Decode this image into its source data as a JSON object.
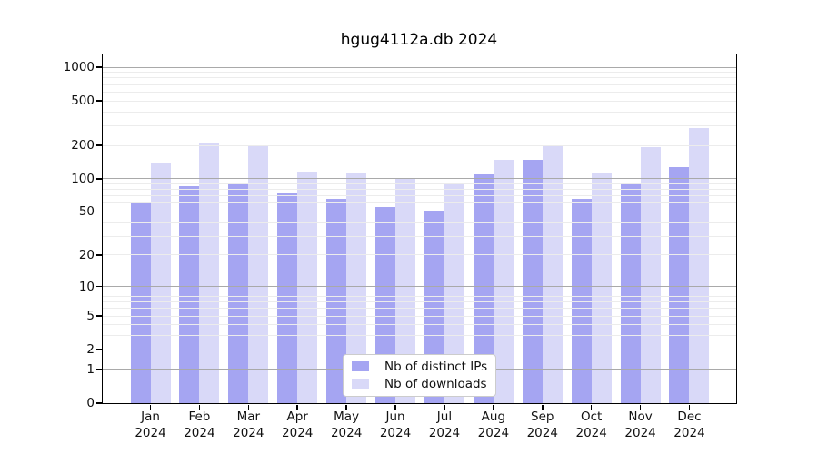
{
  "chart_data": {
    "type": "bar",
    "title": "hgug4112a.db 2024",
    "categories": [
      "Jan",
      "Feb",
      "Mar",
      "Apr",
      "May",
      "Jun",
      "Jul",
      "Aug",
      "Sep",
      "Oct",
      "Nov",
      "Dec"
    ],
    "x_tick_year": "2024",
    "series": [
      {
        "name": "Nb of distinct IPs",
        "color": "#a5a5f2",
        "values": [
          62,
          85,
          90,
          74,
          66,
          55,
          51,
          110,
          148,
          66,
          93,
          128
        ]
      },
      {
        "name": "Nb of downloads",
        "color": "#d9d9f8",
        "values": [
          138,
          212,
          197,
          117,
          112,
          100,
          89,
          149,
          200,
          112,
          194,
          287
        ]
      }
    ],
    "yscale": "log1p",
    "yticks": [
      0,
      1,
      2,
      5,
      10,
      20,
      50,
      100,
      200,
      500,
      1000
    ],
    "ylim": [
      0,
      1300
    ],
    "grid": true,
    "grid_major_color": "#a9a9a9",
    "grid_minor_color": "#ececec",
    "legend_position": "lower center"
  }
}
